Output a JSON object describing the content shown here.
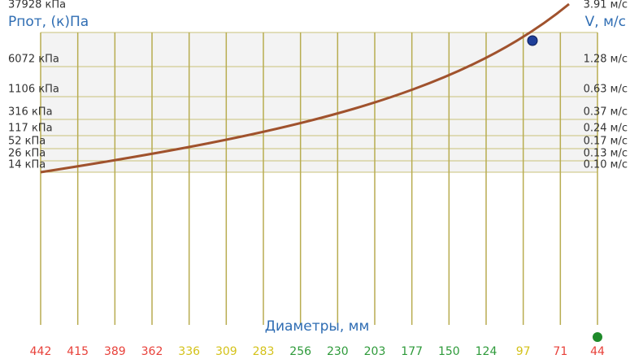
{
  "left_title": "Рпот, (к)Па",
  "right_title": "V, м/с",
  "x_title": "Диаметры, мм",
  "pressure_labels": [
    "37928 кПа",
    "6072 кПа",
    "1106 кПа",
    "316 кПа",
    "117 кПа",
    "52 кПа",
    "26 кПа",
    "14 кПа"
  ],
  "velocity_labels": [
    "3.91 м/с",
    "1.28 м/с",
    "0.63 м/с",
    "0.37 м/с",
    "0.24 м/с",
    "0.17 м/с",
    "0.13 м/с",
    "0.10 м/с"
  ],
  "diameters": [
    442,
    415,
    389,
    362,
    336,
    309,
    283,
    256,
    230,
    203,
    177,
    150,
    124,
    97,
    71,
    44
  ],
  "diameter_colors": [
    "#e8413a",
    "#e8413a",
    "#e8413a",
    "#e8413a",
    "#d4c21a",
    "#d4c21a",
    "#d4c21a",
    "#2e9a3a",
    "#2e9a3a",
    "#2e9a3a",
    "#2e9a3a",
    "#2e9a3a",
    "#2e9a3a",
    "#d4c21a",
    "#e8413a",
    "#e8413a"
  ]
}
